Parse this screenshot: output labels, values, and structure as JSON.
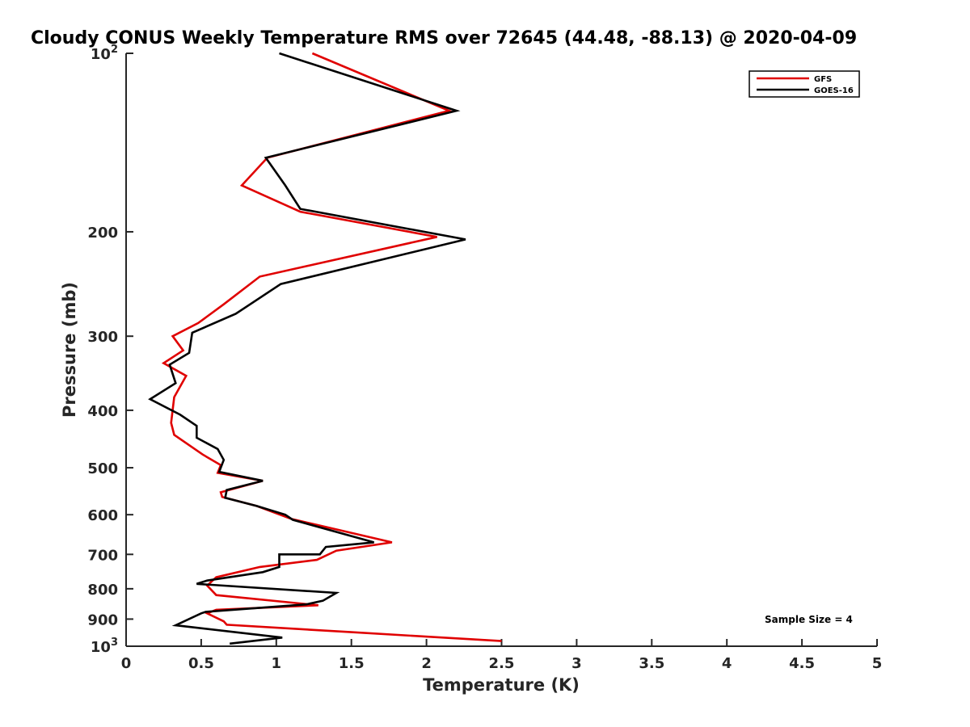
{
  "chart_data": {
    "type": "line",
    "title": "Cloudy CONUS Weekly Temperature RMS over 72645 (44.48, -88.13) @ 2020-04-09",
    "xlabel": "Temperature (K)",
    "ylabel": "Pressure (mb)",
    "xlim": [
      0,
      5
    ],
    "ylim": [
      100,
      1000
    ],
    "yscale": "log",
    "y_reversed": true,
    "x_ticks": [
      "0",
      "0.5",
      "1",
      "1.5",
      "2",
      "2.5",
      "3",
      "3.5",
      "4",
      "4.5",
      "5"
    ],
    "y_ticks": [
      {
        "value": 100,
        "base": "10",
        "exp": "2"
      },
      {
        "value": 200,
        "label": "200"
      },
      {
        "value": 300,
        "label": "300"
      },
      {
        "value": 400,
        "label": "400"
      },
      {
        "value": 500,
        "label": "500"
      },
      {
        "value": 600,
        "label": "600"
      },
      {
        "value": 700,
        "label": "700"
      },
      {
        "value": 800,
        "label": "800"
      },
      {
        "value": 900,
        "label": "900"
      },
      {
        "value": 1000,
        "base": "10",
        "exp": "3"
      }
    ],
    "grid": false,
    "legend_position": "top-right",
    "annotation": "Sample Size = 4",
    "series": [
      {
        "name": "GFS",
        "color": "#e00000",
        "x": [
          1.24,
          2.15,
          0.94,
          0.77,
          1.16,
          2.07,
          0.89,
          0.65,
          0.48,
          0.31,
          0.38,
          0.25,
          0.4,
          0.32,
          0.3,
          0.32,
          0.51,
          0.63,
          0.61,
          0.91,
          0.63,
          0.64,
          0.87,
          1.1,
          1.77,
          1.4,
          1.27,
          0.89,
          0.6,
          0.54,
          0.6,
          1.28,
          0.6,
          0.54,
          0.65,
          0.67,
          1.5,
          2.5
        ],
        "y": [
          100,
          125,
          150,
          167,
          185,
          204,
          238,
          265,
          285,
          300,
          317,
          333,
          350,
          380,
          420,
          440,
          475,
          495,
          510,
          526,
          550,
          560,
          580,
          610,
          668,
          690,
          715,
          735,
          765,
          790,
          820,
          853,
          868,
          880,
          908,
          920,
          947,
          980
        ]
      },
      {
        "name": "GOES-16",
        "color": "#000000",
        "x": [
          1.02,
          2.2,
          0.93,
          1.06,
          1.16,
          2.26,
          1.03,
          0.73,
          0.44,
          0.42,
          0.29,
          0.33,
          0.16,
          0.36,
          0.47,
          0.47,
          0.61,
          0.65,
          0.62,
          0.91,
          0.67,
          0.66,
          0.87,
          1.06,
          1.11,
          1.65,
          1.33,
          1.29,
          1.02,
          1.02,
          0.91,
          0.54,
          0.47,
          1.4,
          1.31,
          1.2,
          0.53,
          0.5,
          0.33,
          1.04,
          0.69
        ],
        "y": [
          100,
          125,
          150,
          167,
          183,
          206,
          245,
          275,
          296,
          320,
          335,
          360,
          383,
          407,
          425,
          445,
          465,
          485,
          508,
          526,
          545,
          562,
          580,
          600,
          612,
          668,
          680,
          700,
          700,
          735,
          750,
          775,
          785,
          813,
          838,
          850,
          875,
          880,
          922,
          967,
          990
        ]
      }
    ]
  }
}
